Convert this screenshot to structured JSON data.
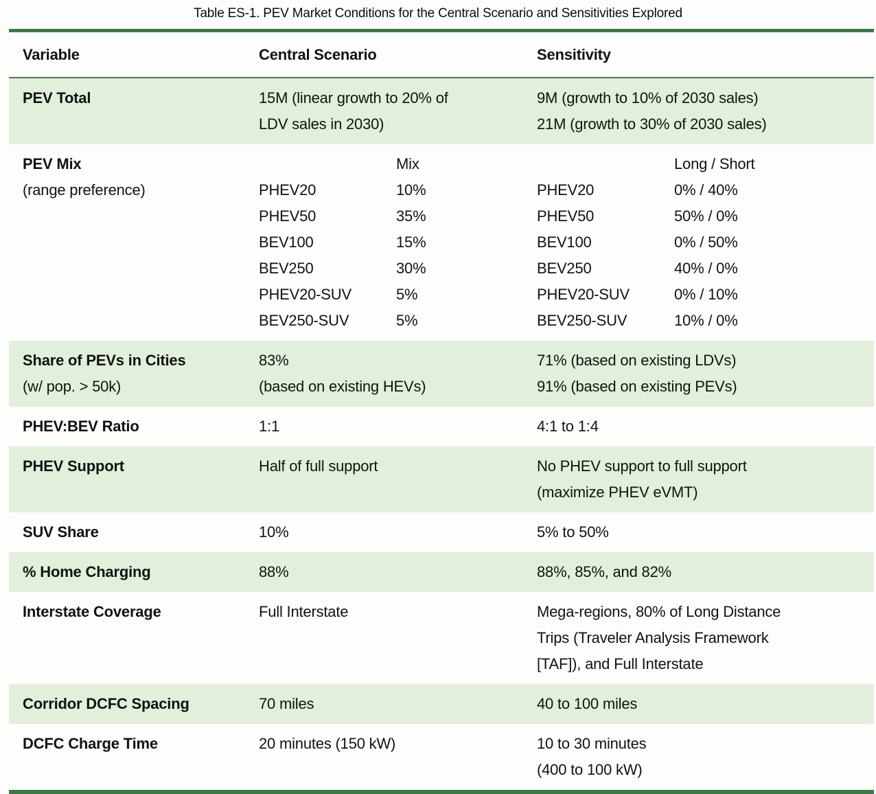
{
  "title": "Table ES-1. PEV Market Conditions for the Central Scenario and Sensitivities Explored",
  "colors": {
    "row_shading_green": "#e2efda",
    "rule_dark_green": "#3a7a44",
    "text": "#121212"
  },
  "header": {
    "variable": "Variable",
    "central": "Central Scenario",
    "sensitivity": "Sensitivity"
  },
  "rows": [
    {
      "variable": "PEV Total",
      "central_lines": [
        "15M (linear growth to 20% of",
        "LDV sales in 2030)"
      ],
      "sensitivity_lines": [
        "9M (growth to 10% of 2030 sales)",
        "21M (growth to 30% of 2030 sales)"
      ]
    },
    {
      "variable": "PEV Mix",
      "variable_note": "(range preference)",
      "central_mix": {
        "header": "Mix",
        "items": [
          [
            "PHEV20",
            "10%"
          ],
          [
            "PHEV50",
            "35%"
          ],
          [
            "BEV100",
            "15%"
          ],
          [
            "BEV250",
            "30%"
          ],
          [
            "PHEV20-SUV",
            "5%"
          ],
          [
            "BEV250-SUV",
            "5%"
          ]
        ]
      },
      "sensitivity_mix": {
        "header": "Long / Short",
        "items": [
          [
            "PHEV20",
            "0% / 40%"
          ],
          [
            "PHEV50",
            "50% / 0%"
          ],
          [
            "BEV100",
            "0% / 50%"
          ],
          [
            "BEV250",
            "40% / 0%"
          ],
          [
            "PHEV20-SUV",
            "0% / 10%"
          ],
          [
            "BEV250-SUV",
            "10% / 0%"
          ]
        ]
      }
    },
    {
      "variable": "Share of PEVs in Cities",
      "variable_note": "(w/ pop. > 50k)",
      "central_lines": [
        "83%",
        "(based on existing HEVs)"
      ],
      "sensitivity_lines": [
        "71% (based on existing LDVs)",
        "91% (based on existing PEVs)"
      ]
    },
    {
      "variable": "PHEV:BEV Ratio",
      "central_lines": [
        "1:1"
      ],
      "sensitivity_lines": [
        "4:1 to 1:4"
      ]
    },
    {
      "variable": "PHEV Support",
      "central_lines": [
        "Half of full support"
      ],
      "sensitivity_lines": [
        "No PHEV support to full support",
        "(maximize PHEV eVMT)"
      ]
    },
    {
      "variable": "SUV Share",
      "central_lines": [
        "10%"
      ],
      "sensitivity_lines": [
        "5% to 50%"
      ]
    },
    {
      "variable": "% Home Charging",
      "central_lines": [
        "88%"
      ],
      "sensitivity_lines": [
        "88%, 85%, and 82%"
      ]
    },
    {
      "variable": "Interstate Coverage",
      "central_lines": [
        "Full Interstate"
      ],
      "sensitivity_lines": [
        "Mega-regions, 80% of Long Distance",
        "Trips (Traveler Analysis Framework",
        "[TAF]), and Full Interstate"
      ]
    },
    {
      "variable": "Corridor DCFC Spacing",
      "central_lines": [
        "70 miles"
      ],
      "sensitivity_lines": [
        "40 to 100 miles"
      ]
    },
    {
      "variable": "DCFC Charge Time",
      "central_lines": [
        "20 minutes (150 kW)"
      ],
      "sensitivity_lines": [
        "10 to 30 minutes",
        "(400 to 100 kW)"
      ]
    }
  ]
}
